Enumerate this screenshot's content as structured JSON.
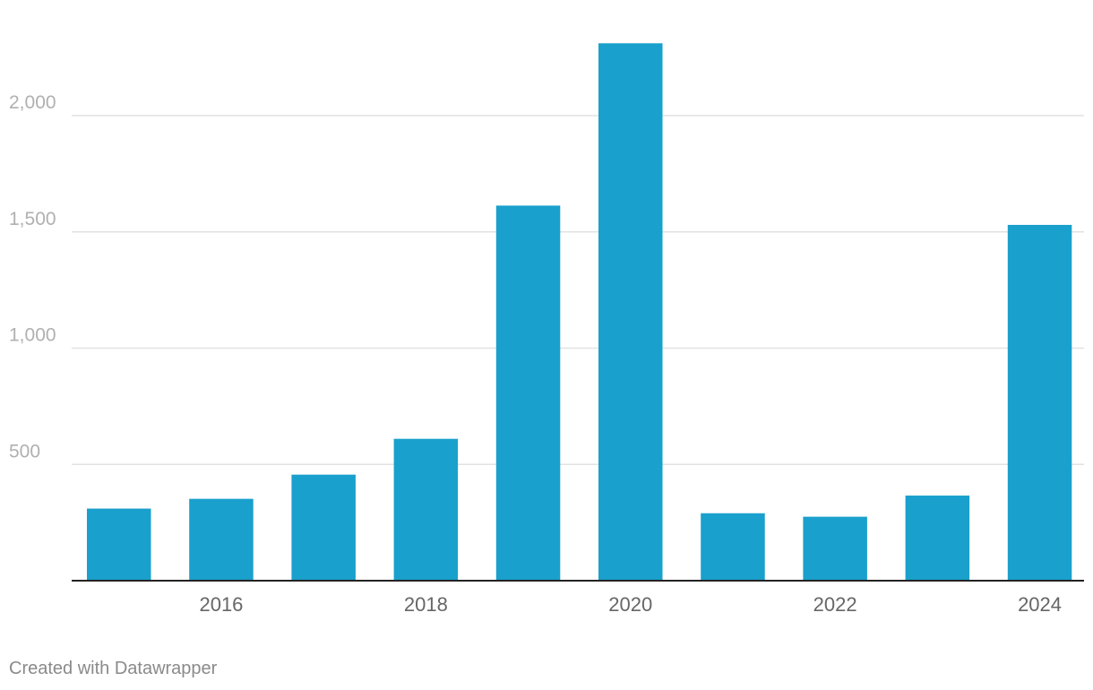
{
  "chart_data": {
    "type": "bar",
    "categories": [
      "2015",
      "2016",
      "2017",
      "2018",
      "2019",
      "2020",
      "2021",
      "2022",
      "2023",
      "2024"
    ],
    "values": [
      310,
      352,
      456,
      610,
      1613,
      2311,
      290,
      275,
      366,
      1530
    ],
    "x_tick_labels": [
      "2016",
      "2018",
      "2020",
      "2022",
      "2024"
    ],
    "y_ticks": [
      500,
      1000,
      1500,
      2000
    ],
    "y_tick_labels": [
      "500",
      "1,000",
      "1,500",
      "2,000"
    ],
    "ylim": [
      0,
      2300
    ],
    "grid": true,
    "bar_color": "#1aa0cc",
    "title": "",
    "xlabel": "",
    "ylabel": ""
  },
  "footer": {
    "credit": "Created with Datawrapper"
  }
}
